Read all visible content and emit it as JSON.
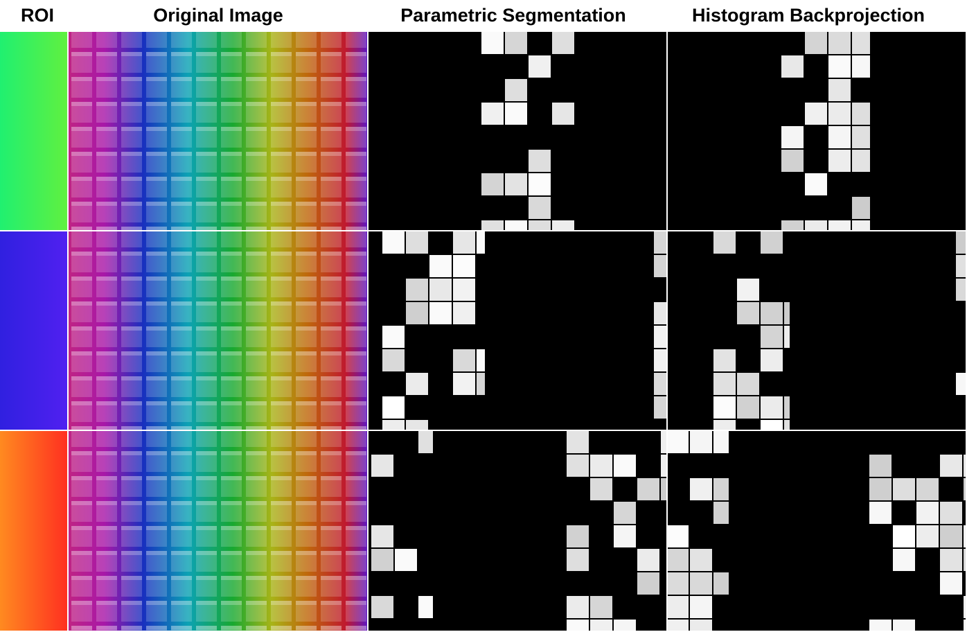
{
  "header": {
    "columns": [
      "ROI",
      "Original Image",
      "Parametric Segmentation",
      "Histogram Backprojection"
    ]
  }
}
